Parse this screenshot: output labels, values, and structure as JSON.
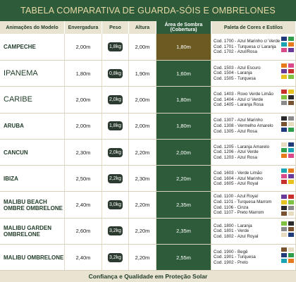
{
  "header": {
    "title": "TABELA COMPARATIVA DE GUARDA-SÓIS E OMBRELONES"
  },
  "table": {
    "columns": [
      "Animações do Modelo",
      "Envergadura",
      "Peso",
      "Altura",
      "Área de Sombra (Cobertura)",
      "Paleta de Cores e Estilos"
    ],
    "rows": [
      [
        "CAMPECHE",
        "2,00m",
        "1,8kg",
        "2,00m",
        "1,80m",
        [
          "Cod. 1700 - Azul Marinho c/ Verde",
          "Cod. 1701 - Turquesa c/ Laranja",
          "Cod. 1702 - Azul/Rosa"
        ]
      ],
      [
        "IPANEMA",
        "1,80m",
        "0,8kg",
        "1,90m",
        "1,60m",
        [
          "Cod. 1503 - Azul Escuro",
          "Cod. 1504 - Laranja",
          "Cod. 1505 - Turquesa"
        ]
      ],
      [
        "CARIBE",
        "2,00m",
        "2,0kg",
        "2,00m",
        "1,80m",
        [
          "Cod. 1403 - Roxo Verde Limão",
          "Cod. 1404 - Azul c/ Verde",
          "Cod. 1405 - Laranja Rosa"
        ]
      ],
      [
        "ARUBA",
        "2,00m",
        "1,8kg",
        "2,00m",
        "1,80m",
        [
          "Cod. 1307 - Azul Marinho",
          "Cod. 1308 - Vermelho Amarelo",
          "Cod. 1305 - Azul Rosa"
        ]
      ],
      [
        "CANCUN",
        "2,30m",
        "2,0kg",
        "2,20m",
        "2,00m",
        [
          "Cod. 1205 - Laranja Amarelo",
          "Cod. 1206 - Azul Verde",
          "Cod. 1203 - Azul Rosa"
        ]
      ],
      [
        "IBIZA",
        "2,50m",
        "2,2kg",
        "2,30m",
        "2,20m",
        [
          "Cod. 1603 - Verde Limão",
          "Cod. 1604 - Azul Marinho",
          "Cod. 1605 - Azul Royal"
        ]
      ],
      [
        "MALIBU BEACH OMBRE OMBRELONE",
        "2,40m",
        "3,0kg",
        "2,20m",
        "2,35m",
        [
          "Cod. 1100 - Azul Royal",
          "Cod. 1101 - Turquesa Marrom",
          "Cod. 1106 - Cinza",
          "Cod. 1107 - Preto Marrom"
        ]
      ],
      [
        "MALIBU GARDEN OMBRELONE",
        "2,60m",
        "3,2kg",
        "2,20m",
        "2,35m",
        [
          "Cod. 1800 - Laranja",
          "Cod. 1801 - Verde",
          "Cod. 1802 - Azul Royal"
        ]
      ],
      [
        "MALIBU OMBRELONE",
        "2,40m",
        "3,2kg",
        "2,20m",
        "2,55m",
        [
          "Cod. 1900 - Begê",
          "Cod. 1901 - Turquesa",
          "Cod. 1902 - Preto"
        ]
      ]
    ]
  },
  "footer": {
    "text": "Confiança e Qualidade em Proteção Solar"
  }
}
